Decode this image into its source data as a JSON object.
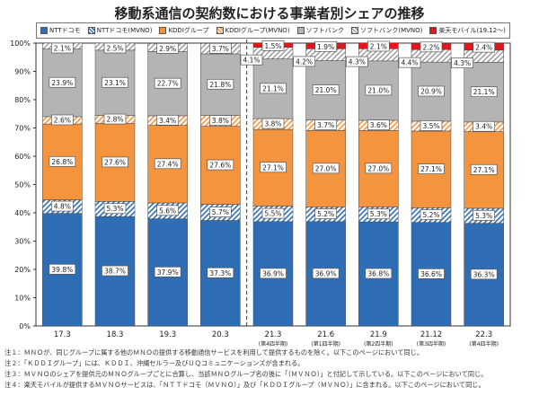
{
  "title": "移動系通信の契約数における事業者別シェアの推移",
  "chart_data": {
    "type": "bar",
    "stacked": true,
    "title": "移動系通信の契約数における事業者別シェアの推移",
    "categories": [
      "17.3",
      "18.3",
      "19.3",
      "20.3",
      "21.3",
      "21.6",
      "21.9",
      "21.12",
      "22.3"
    ],
    "subcategories": [
      "",
      "",
      "",
      "",
      "(第4四半期)",
      "(第1四半期)",
      "(第2四半期)",
      "(第3四半期)",
      "(第4四半期)"
    ],
    "yticks": [
      "0%",
      "10%",
      "20%",
      "30%",
      "40%",
      "50%",
      "60%",
      "70%",
      "80%",
      "90%",
      "100%"
    ],
    "ylim": [
      0,
      100
    ],
    "legend_position": "top",
    "series": [
      {
        "name": "NTTドコモ",
        "color": "#2f6eb5",
        "hatched": false,
        "values": [
          39.8,
          38.7,
          37.9,
          37.3,
          36.9,
          36.9,
          36.8,
          36.6,
          36.3
        ]
      },
      {
        "name": "NTTドコモ(MVNO)",
        "color": "#2f6eb5",
        "hatched": true,
        "values": [
          4.8,
          5.3,
          5.6,
          5.7,
          5.5,
          5.2,
          5.3,
          5.2,
          5.3
        ]
      },
      {
        "name": "KDDIグループ",
        "color": "#f5943f",
        "hatched": false,
        "values": [
          26.8,
          27.6,
          27.4,
          27.6,
          27.1,
          27.0,
          27.0,
          27.1,
          27.1
        ]
      },
      {
        "name": "KDDIグループ(MVNO)",
        "color": "#f5943f",
        "hatched": true,
        "values": [
          2.6,
          2.8,
          3.4,
          3.8,
          3.8,
          3.7,
          3.6,
          3.5,
          3.4
        ]
      },
      {
        "name": "ソフトバンク",
        "color": "#b4b4b4",
        "hatched": false,
        "values": [
          23.9,
          23.1,
          22.7,
          21.8,
          21.1,
          21.0,
          21.0,
          20.9,
          21.1
        ]
      },
      {
        "name": "ソフトバンク(MVNO)",
        "color": "#9a9a9a",
        "hatched": true,
        "values": [
          2.1,
          2.5,
          2.9,
          3.7,
          4.1,
          4.2,
          4.3,
          4.4,
          4.3
        ]
      },
      {
        "name": "楽天モバイル(19.12～)",
        "color": "#e8141b",
        "hatched": false,
        "values": [
          null,
          null,
          null,
          null,
          1.5,
          1.9,
          2.1,
          2.2,
          2.4
        ]
      }
    ]
  },
  "notes": [
    "注１：ＭＮＯが、同じグループに属する他のＭＮＯの提供する移動通信サービスを利用して提供するものを除く。以下このページにおいて同じ。",
    "注２：「ＫＤＤＩグループ」には、ＫＤＤＩ、沖縄セルラー及びＵＱコミュニケーションズが含まれる。",
    "注３：ＭＶＮＯのシェアを提供元のＭＮＯグループごとに合算し、当該ＭＮＯグループ名の後に「（ＭＶＮＯ）」と付記して示している。以下このページにおいて同じ。",
    "注４：楽天モバイルが提供するＭＶＮＯサービスは、「ＮＴＴドコモ（ＭＶＮＯ）」及び「ＫＤＤＩグループ（ＭＶＮＯ）」に含まれる。以下このページにおいて同じ。"
  ]
}
